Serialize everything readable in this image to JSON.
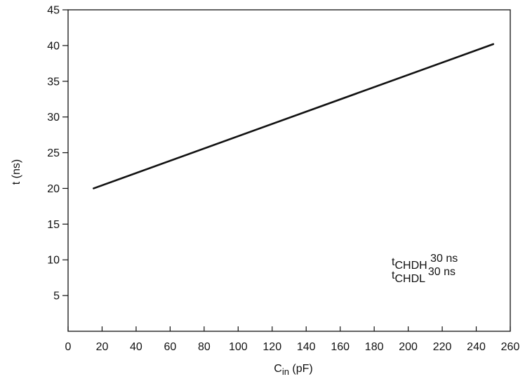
{
  "chart_data": {
    "type": "line",
    "xlabel": "C",
    "xlabel_sub": "in",
    "xlabel_unit": " (pF)",
    "ylabel": "t (ns)",
    "xlim": [
      0,
      260
    ],
    "ylim": [
      0,
      45
    ],
    "x_ticks": [
      0,
      20,
      40,
      60,
      80,
      100,
      120,
      140,
      160,
      180,
      200,
      220,
      240,
      260
    ],
    "y_ticks": [
      5,
      10,
      15,
      20,
      25,
      30,
      35,
      40,
      45
    ],
    "grid": false,
    "series": [
      {
        "x": [
          15,
          250
        ],
        "y": [
          20,
          40.2
        ]
      }
    ],
    "annotations": [
      {
        "base": "t",
        "sub": "CHDH",
        "value": " 30 ns"
      },
      {
        "base": "t",
        "sub": "CHDL",
        "value": " 30 ns"
      }
    ]
  },
  "colors": {
    "line": "#111111",
    "axis": "#111111"
  }
}
